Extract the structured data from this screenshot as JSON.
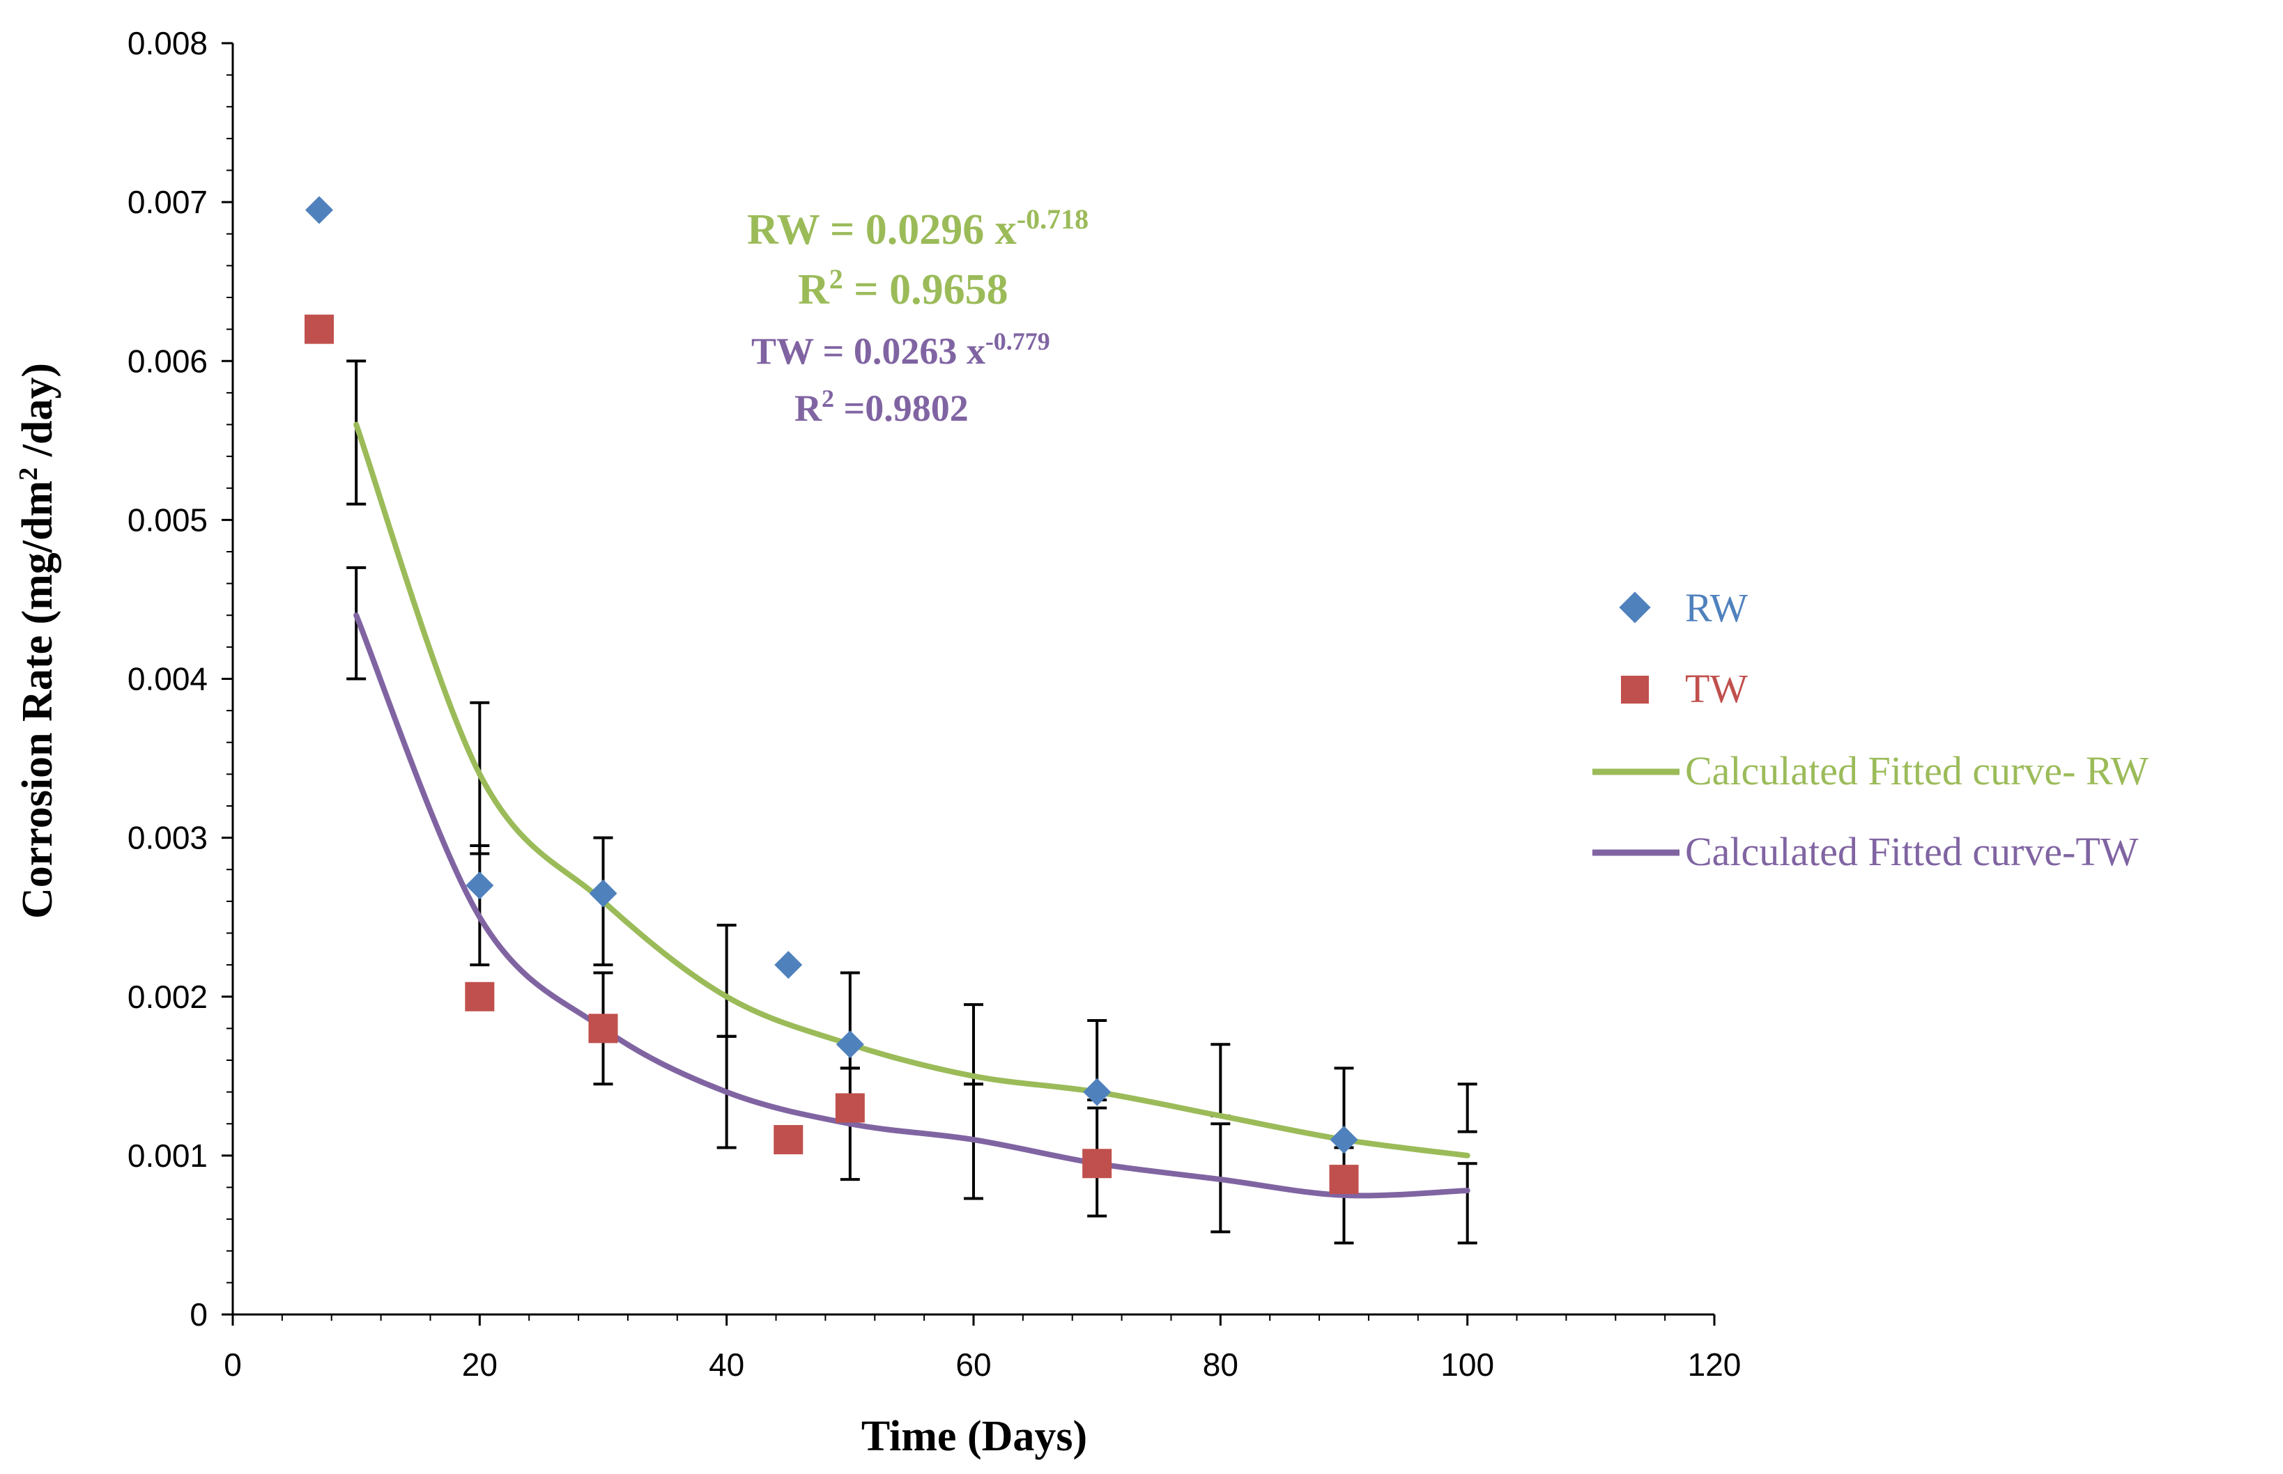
{
  "chart_data": {
    "type": "scatter",
    "xlabel": "Time (Days)",
    "ylabel_main": "Corrosion Rate (mg/dm",
    "ylabel_sup": "2",
    "ylabel_tail": " /day)",
    "xlim": [
      0,
      120
    ],
    "ylim": [
      0,
      0.008
    ],
    "x_ticks": [
      0,
      20,
      40,
      60,
      80,
      100,
      120
    ],
    "x_tick_labels": [
      "0",
      "20",
      "40",
      "60",
      "80",
      "100",
      "120"
    ],
    "y_ticks": [
      0,
      0.001,
      0.002,
      0.003,
      0.004,
      0.005,
      0.006,
      0.007,
      0.008
    ],
    "y_tick_labels": [
      "0",
      "0.001",
      "0.002",
      "0.003",
      "0.004",
      "0.005",
      "0.006",
      "0.007",
      "0.008"
    ],
    "colors": {
      "rw": "#4f81bd",
      "tw": "#c0504d",
      "rw_fit": "#9bbb59",
      "tw_fit": "#8064a2",
      "axis": "#000000"
    },
    "series": [
      {
        "name": "RW",
        "kind": "marker-diamond",
        "color": "#4f81bd",
        "x": [
          7,
          20,
          30,
          45,
          50,
          70,
          90
        ],
        "y": [
          0.00695,
          0.0027,
          0.00265,
          0.0022,
          0.0017,
          0.0014,
          0.0011
        ]
      },
      {
        "name": "TW",
        "kind": "marker-square",
        "color": "#c0504d",
        "x": [
          7,
          20,
          30,
          45,
          50,
          70,
          90
        ],
        "y": [
          0.0062,
          0.002,
          0.0018,
          0.0011,
          0.0013,
          0.00095,
          0.00085
        ]
      },
      {
        "name": "Calculated Fitted curve- RW",
        "kind": "line",
        "color": "#9bbb59",
        "x": [
          10,
          20,
          30,
          40,
          50,
          60,
          70,
          80,
          90,
          100
        ],
        "y": [
          0.0056,
          0.0034,
          0.0026,
          0.002,
          0.0017,
          0.0015,
          0.0014,
          0.00125,
          0.0011,
          0.001
        ],
        "err_lo": [
          0.0051,
          0.0029,
          0.0022,
          0.00175,
          0.00155,
          0.00145,
          0.00135,
          0.00125,
          0.0011,
          0.00115
        ],
        "err_hi": [
          0.006,
          0.00385,
          0.003,
          0.00245,
          0.00215,
          0.00195,
          0.00185,
          0.0017,
          0.00155,
          0.00145
        ]
      },
      {
        "name": "Calculated Fitted curve-TW",
        "kind": "line",
        "color": "#8064a2",
        "x": [
          10,
          20,
          30,
          40,
          50,
          60,
          70,
          80,
          90,
          100
        ],
        "y": [
          0.0044,
          0.0025,
          0.0018,
          0.0014,
          0.0012,
          0.0011,
          0.00095,
          0.00085,
          0.00075,
          0.00078
        ],
        "err_lo": [
          0.004,
          0.0022,
          0.00145,
          0.00105,
          0.00085,
          0.00073,
          0.00062,
          0.00052,
          0.00045,
          0.00045
        ],
        "err_hi": [
          0.0047,
          0.00295,
          0.00215,
          0.00175,
          0.00155,
          0.00145,
          0.0013,
          0.0012,
          0.00105,
          0.00095
        ]
      }
    ],
    "legend": [
      "RW",
      "TW",
      "Calculated Fitted curve- RW",
      "Calculated Fitted curve-TW"
    ],
    "annotations": {
      "rw_eq_main": "RW = 0.0296 x",
      "rw_eq_exp": "-0.718",
      "rw_r2_main": "R",
      "rw_r2_sup": "2",
      "rw_r2_tail": " = 0.9658",
      "tw_eq_main": "TW = 0.0263 x",
      "tw_eq_exp": "-0.779",
      "tw_r2_main": "R",
      "tw_r2_sup": "2",
      "tw_r2_tail": " =0.9802"
    }
  }
}
